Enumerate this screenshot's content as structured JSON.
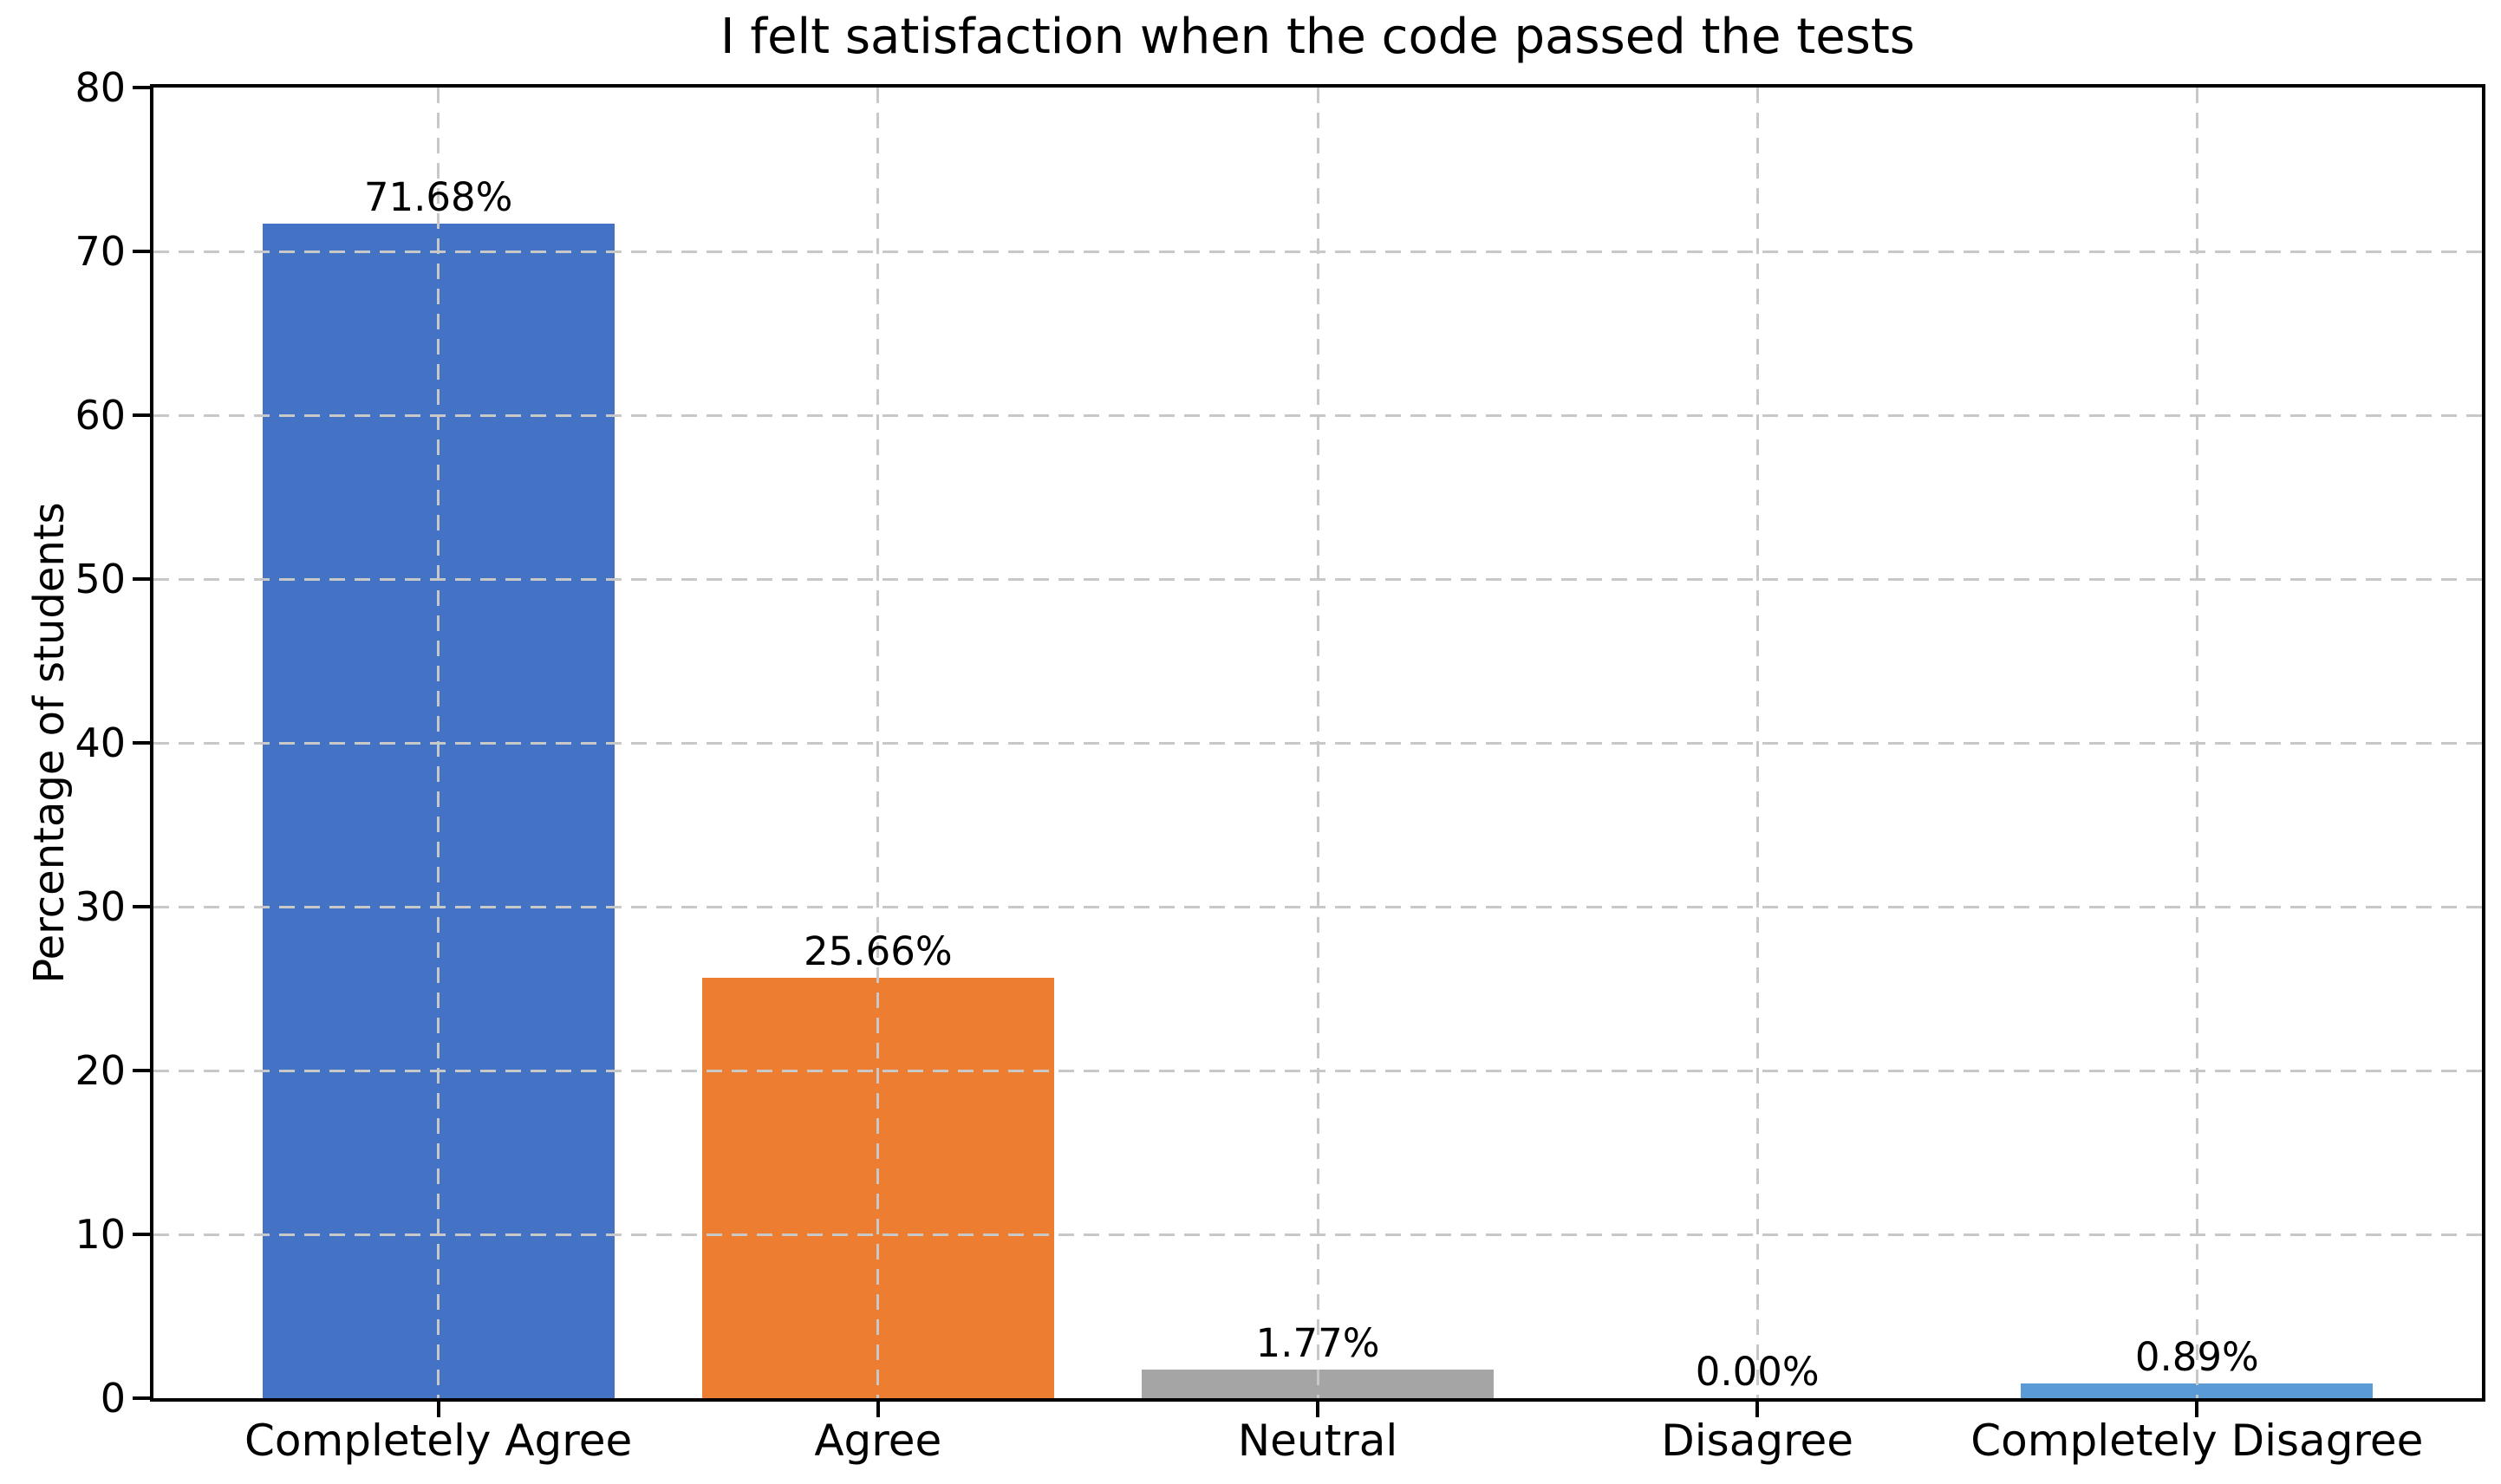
{
  "chart_data": {
    "type": "bar",
    "title": "I felt satisfaction when the code passed the tests",
    "xlabel": "",
    "ylabel": "Percentage of students",
    "categories": [
      "Completely Agree",
      "Agree",
      "Neutral",
      "Disagree",
      "Completely Disagree"
    ],
    "values": [
      71.68,
      25.66,
      1.77,
      0.0,
      0.89
    ],
    "value_labels": [
      "71.68%",
      "25.66%",
      "1.77%",
      "0.00%",
      "0.89%"
    ],
    "bar_colors": [
      "#4472C4",
      "#ED7D31",
      "#A5A5A5",
      null,
      "#5B9BD5"
    ],
    "ylim": [
      0,
      80
    ],
    "yticks": [
      0,
      10,
      20,
      30,
      40,
      50,
      60,
      70,
      80
    ],
    "grid": "dashed gridlines on both axes, drawn above bars",
    "legend": "none"
  },
  "colors": {
    "background": "#ffffff",
    "axis": "#000000",
    "gridline": "#c8c8c8",
    "text": "#000000"
  }
}
